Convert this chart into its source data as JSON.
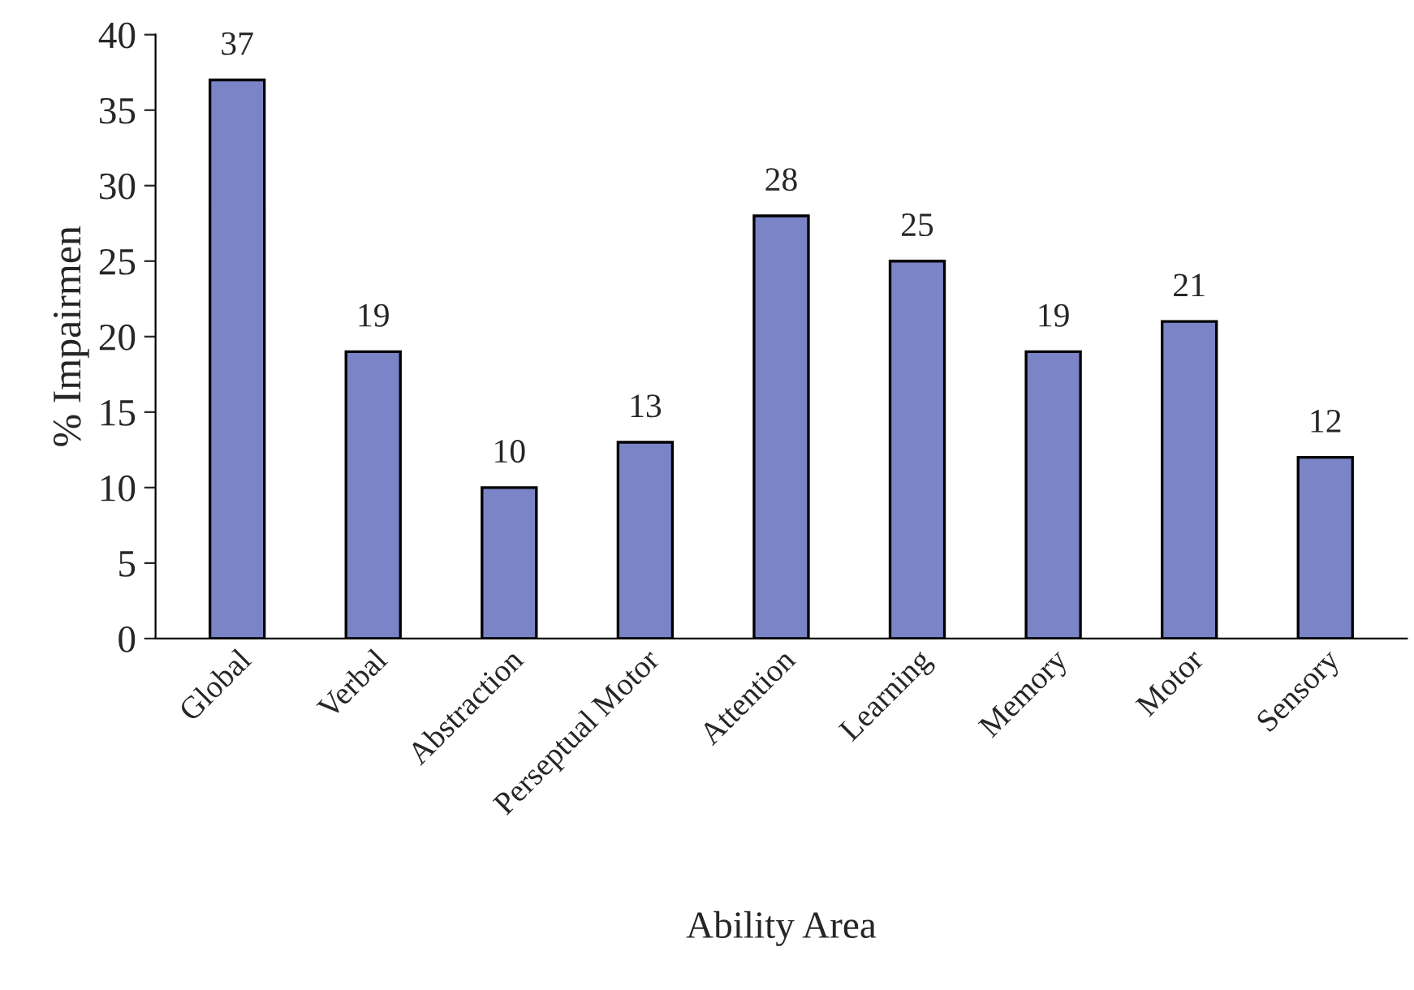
{
  "chart_data": {
    "type": "bar",
    "xlabel": "Ability Area",
    "ylabel": "% Impairmen",
    "categories": [
      "Global",
      "Verbal",
      "Abstraction",
      "Perseptual Motor",
      "Attention",
      "Learning",
      "Memory",
      "Motor",
      "Sensory"
    ],
    "values": [
      37,
      19,
      10,
      13,
      28,
      25,
      19,
      21,
      12
    ],
    "color": "#7b84c6",
    "ylim": [
      0,
      40
    ],
    "yticks": [
      0,
      5,
      10,
      15,
      20,
      25,
      30,
      35,
      40
    ],
    "grid": false,
    "data_labels": true
  }
}
